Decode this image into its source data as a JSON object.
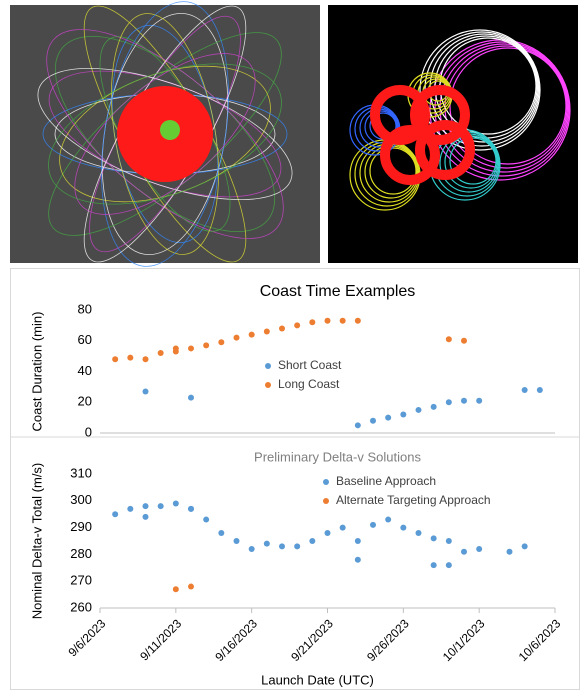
{
  "chart_data": [
    {
      "type": "scatter",
      "title": "Coast Time Examples",
      "y_label": "Coast Duration (min)",
      "xlim": [
        "2023-09-06",
        "2023-10-06"
      ],
      "ylim": [
        0,
        80
      ],
      "yticks": [
        0,
        20,
        40,
        60,
        80
      ],
      "legend": "center",
      "series": [
        {
          "name": "Short Coast",
          "color": "#5b9bd5",
          "x": [
            "2023-09-09",
            "2023-09-12",
            "2023-09-23",
            "2023-09-24",
            "2023-09-25",
            "2023-09-26",
            "2023-09-27",
            "2023-09-28",
            "2023-09-29",
            "2023-09-30",
            "2023-10-01",
            "2023-10-04",
            "2023-10-05"
          ],
          "values": [
            27,
            23,
            5,
            8,
            10,
            12,
            15,
            17,
            20,
            21,
            21,
            28,
            28
          ]
        },
        {
          "name": "Long Coast",
          "color": "#ed7d31",
          "x": [
            "2023-09-07",
            "2023-09-08",
            "2023-09-09",
            "2023-09-10",
            "2023-09-11",
            "2023-09-11",
            "2023-09-12",
            "2023-09-13",
            "2023-09-14",
            "2023-09-15",
            "2023-09-16",
            "2023-09-17",
            "2023-09-18",
            "2023-09-19",
            "2023-09-20",
            "2023-09-21",
            "2023-09-22",
            "2023-09-23",
            "2023-09-29",
            "2023-09-30"
          ],
          "values": [
            48,
            49,
            48,
            52,
            53,
            55,
            55,
            57,
            59,
            62,
            64,
            66,
            68,
            70,
            72,
            73,
            73,
            73,
            61,
            60
          ]
        }
      ]
    },
    {
      "type": "scatter",
      "title": "Preliminary Delta-v Solutions",
      "y_label": "Nominal Delta-v Total (m/s)",
      "x_label": "Launch Date (UTC)",
      "xlim": [
        "2023-09-06",
        "2023-10-06"
      ],
      "xticks": [
        {
          "value": "2023-09-06",
          "label": "9/6/2023"
        },
        {
          "value": "2023-09-11",
          "label": "9/11/2023"
        },
        {
          "value": "2023-09-16",
          "label": "9/16/2023"
        },
        {
          "value": "2023-09-21",
          "label": "9/21/2023"
        },
        {
          "value": "2023-09-26",
          "label": "9/26/2023"
        },
        {
          "value": "2023-10-01",
          "label": "10/1/2023"
        },
        {
          "value": "2023-10-06",
          "label": "10/6/2023"
        }
      ],
      "ylim": [
        260,
        310
      ],
      "yticks": [
        260,
        270,
        280,
        290,
        300,
        310
      ],
      "legend": "top-right",
      "series": [
        {
          "name": "Baseline Approach",
          "color": "#5b9bd5",
          "x": [
            "2023-09-07",
            "2023-09-08",
            "2023-09-09",
            "2023-09-09",
            "2023-09-10",
            "2023-09-11",
            "2023-09-12",
            "2023-09-12",
            "2023-09-13",
            "2023-09-14",
            "2023-09-15",
            "2023-09-16",
            "2023-09-17",
            "2023-09-18",
            "2023-09-19",
            "2023-09-20",
            "2023-09-21",
            "2023-09-22",
            "2023-09-23",
            "2023-09-23",
            "2023-09-24",
            "2023-09-25",
            "2023-09-26",
            "2023-09-27",
            "2023-09-28",
            "2023-09-29",
            "2023-09-28",
            "2023-09-29",
            "2023-09-30",
            "2023-10-01",
            "2023-10-03",
            "2023-10-04"
          ],
          "values": [
            295,
            297,
            298,
            294,
            298,
            299,
            297,
            297,
            293,
            288,
            285,
            282,
            284,
            283,
            283,
            285,
            288,
            290,
            285,
            278,
            291,
            293,
            290,
            288,
            286,
            285,
            276,
            276,
            281,
            282,
            281,
            283
          ]
        },
        {
          "name": "Alternate Targeting Approach",
          "color": "#ed7d31",
          "x": [
            "2023-09-11",
            "2023-09-12"
          ],
          "values": [
            267,
            268
          ]
        }
      ]
    }
  ]
}
